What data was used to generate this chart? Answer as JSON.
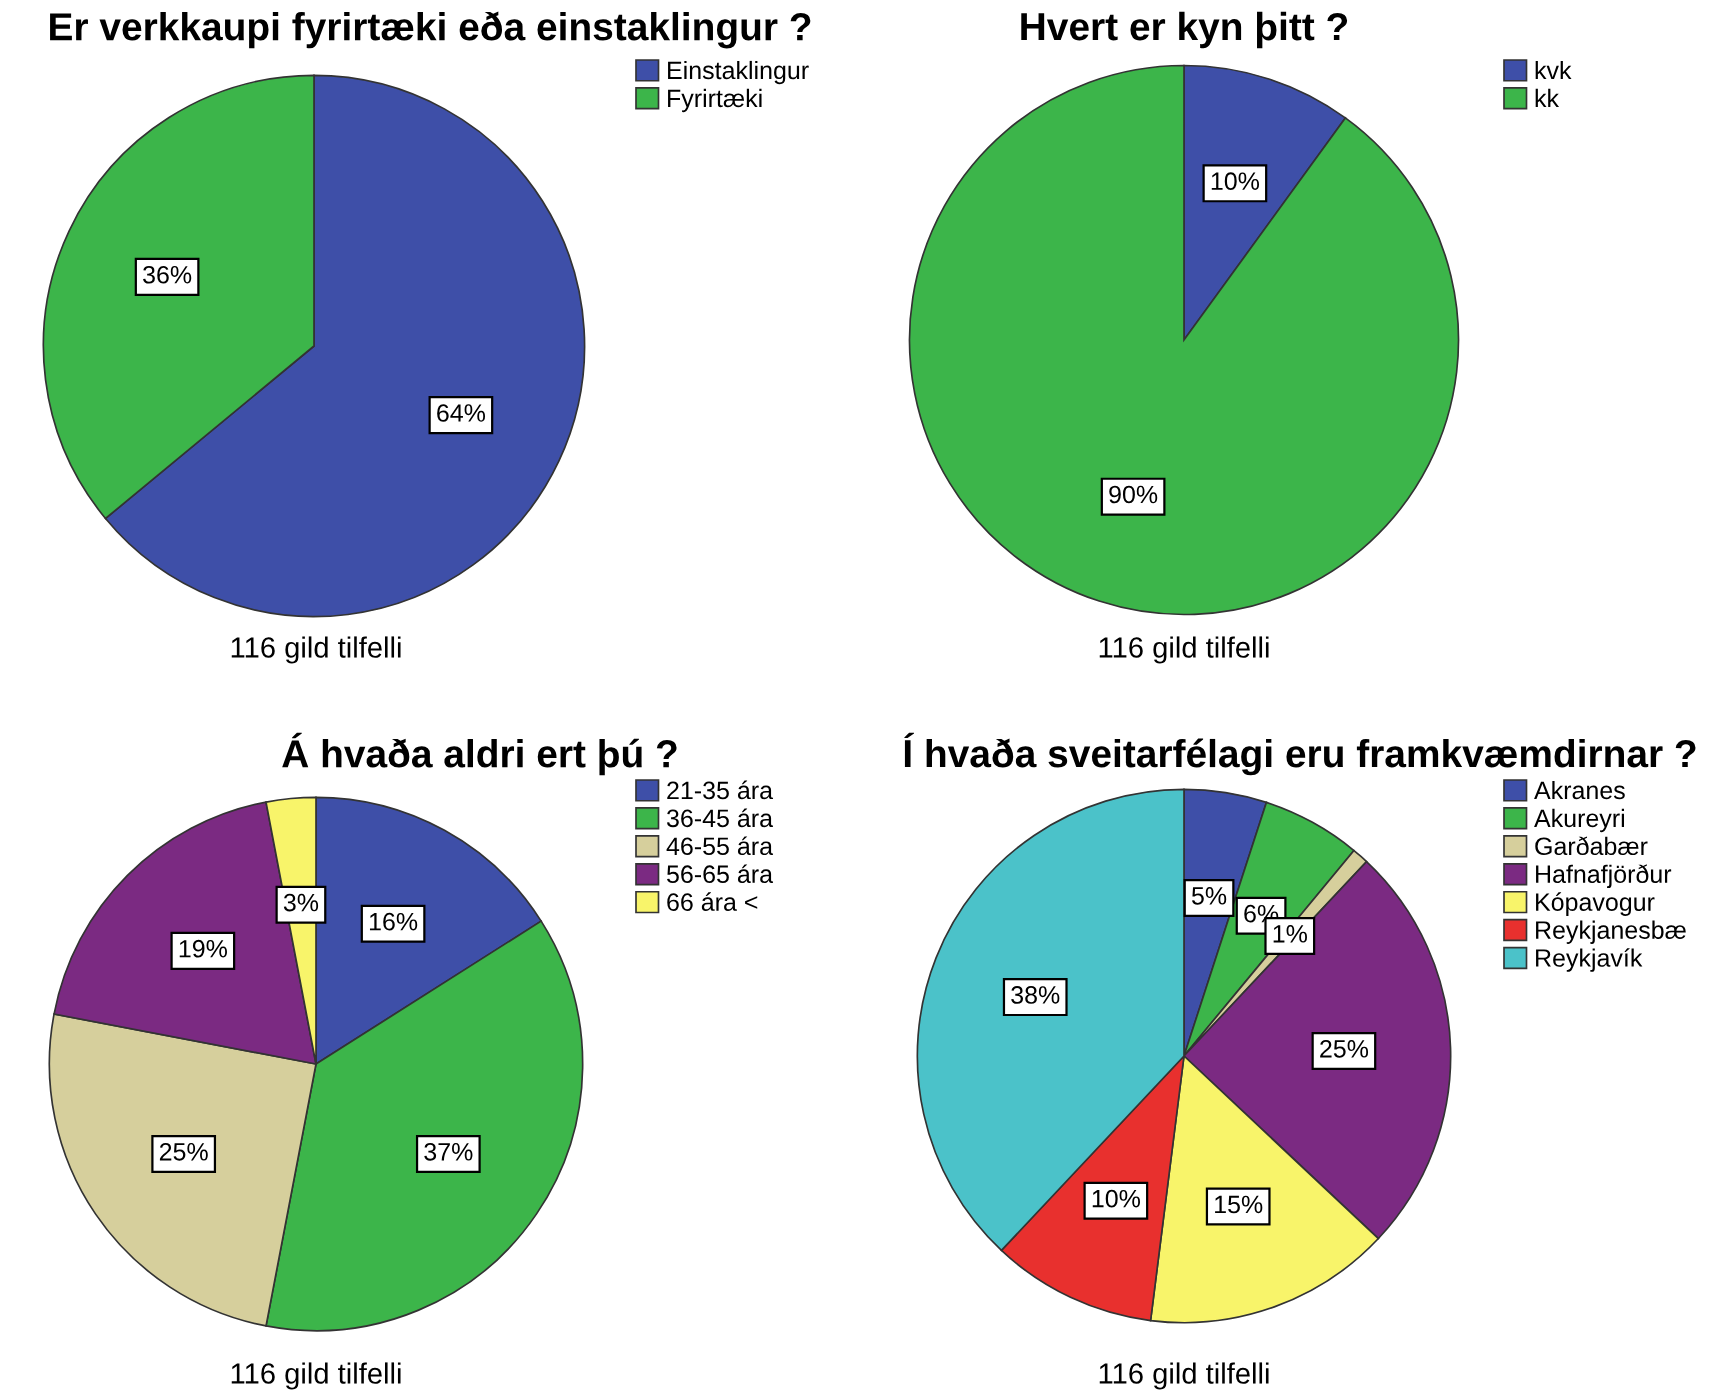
{
  "chart_data": [
    {
      "type": "pie",
      "title": "Er verkkaupi fyrirtæki eða einstaklingur ?",
      "categories": [
        "Einstaklingur",
        "Fyrirtæki"
      ],
      "values": [
        64,
        36
      ],
      "colors": [
        "#3e4fa8",
        "#3cb54a"
      ],
      "value_labels": [
        "64%",
        "36%"
      ],
      "legend": "top right",
      "annotations": [
        "116 gild tilfelli"
      ]
    },
    {
      "type": "pie",
      "title": "Hvert er kyn þitt ?",
      "categories": [
        "kvk",
        "kk"
      ],
      "values": [
        10,
        90
      ],
      "colors": [
        "#3e4fa8",
        "#3cb54a"
      ],
      "value_labels": [
        "10%",
        "90%"
      ],
      "legend": "top right",
      "annotations": [
        "116 gild tilfelli"
      ]
    },
    {
      "type": "pie",
      "title": "Á hvaða aldri ert þú ?",
      "categories": [
        "21-35 ára",
        "36-45 ára",
        "46-55 ára",
        "56-65 ára",
        "66 ára <"
      ],
      "values": [
        16,
        37,
        25,
        19,
        3
      ],
      "colors": [
        "#3e4fa8",
        "#3cb54a",
        "#d6cf9c",
        "#7b2a82",
        "#f8f46a"
      ],
      "value_labels": [
        "16%",
        "37%",
        "25%",
        "19%",
        "3%"
      ],
      "legend": "top right",
      "annotations": [
        "116 gild tilfelli"
      ]
    },
    {
      "type": "pie",
      "title": "Í hvaða sveitarfélagi eru framkvæmdirnar ?",
      "categories": [
        "Akranes",
        "Akureyri",
        "Garðabær",
        "Hafnafjörður",
        "Kópavogur",
        "Reykjanesbæ",
        "Reykjavík"
      ],
      "values": [
        5,
        6,
        1,
        25,
        15,
        10,
        38
      ],
      "colors": [
        "#3e4fa8",
        "#3cb54a",
        "#d6cf9c",
        "#7b2a82",
        "#f8f46a",
        "#e8302e",
        "#4bc2c9"
      ],
      "value_labels": [
        "5%",
        "6%",
        "1%",
        "25%",
        "15%",
        "10%",
        "38%"
      ],
      "legend": "top right",
      "annotations": [
        "116 gild tilfelli"
      ]
    }
  ]
}
